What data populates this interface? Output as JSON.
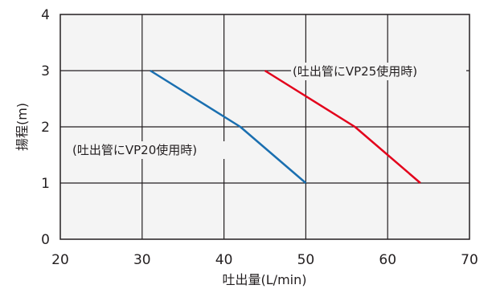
{
  "chart_data": {
    "type": "line",
    "xlabel": "吐出量(L/min)",
    "ylabel": "揚程(m)",
    "xlim": [
      20,
      70
    ],
    "ylim": [
      0,
      4
    ],
    "xticks": [
      "20",
      "30",
      "40",
      "50",
      "60",
      "70"
    ],
    "yticks": [
      "0",
      "1",
      "2",
      "3",
      "4"
    ],
    "grid": true,
    "series": [
      {
        "name": "(吐出管にVP20使用時)",
        "color": "#1a6fb0",
        "x": [
          31,
          42,
          50
        ],
        "y": [
          3,
          2,
          1
        ]
      },
      {
        "name": "(吐出管にVP25使用時)",
        "color": "#e3001b",
        "x": [
          45,
          56,
          64
        ],
        "y": [
          3,
          2,
          1
        ]
      }
    ]
  }
}
